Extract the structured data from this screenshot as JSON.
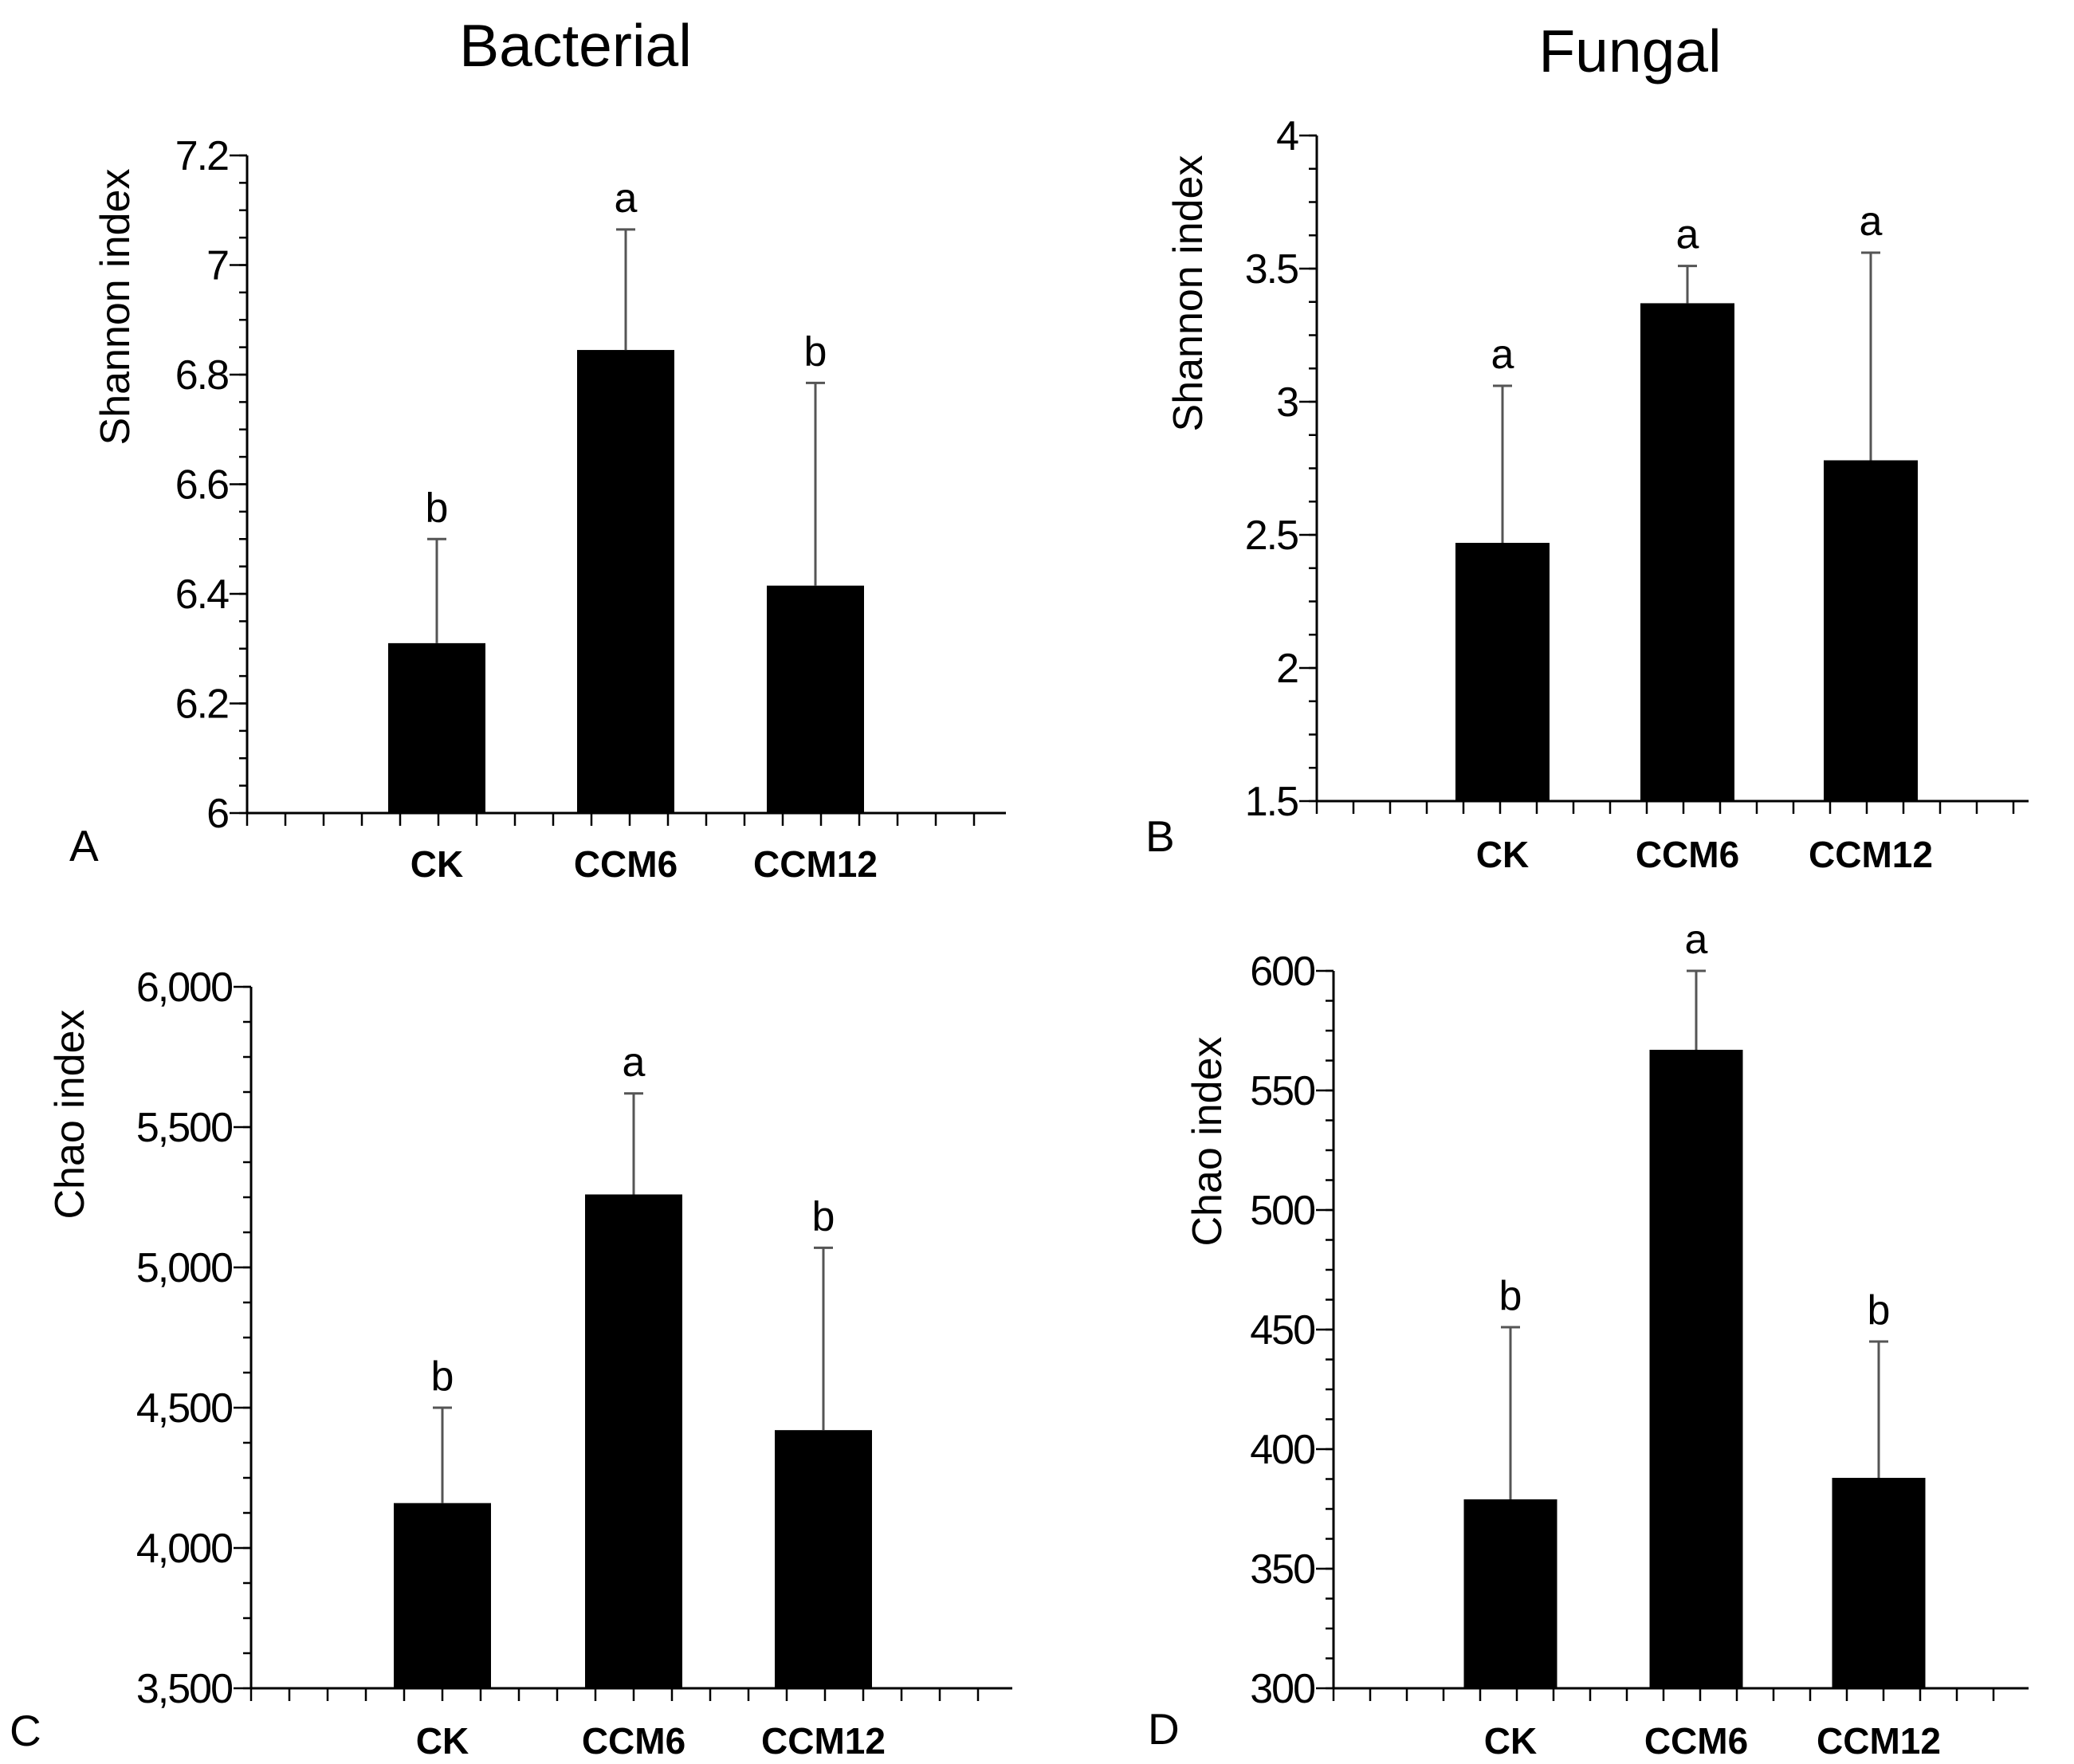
{
  "titles": {
    "left": "Bacterial",
    "right": "Fungal"
  },
  "chart_data": [
    {
      "type": "bar",
      "panel": "A",
      "title": "Bacterial",
      "ylabel": "Shannon index",
      "xlabel": "",
      "categories": [
        "CK",
        "CCM6",
        "CCM12"
      ],
      "values": [
        6.31,
        6.845,
        6.415
      ],
      "errors": [
        0.19,
        0.22,
        0.37
      ],
      "significance": [
        "b",
        "a",
        "b"
      ],
      "ylim": [
        6,
        7.2
      ],
      "yticks": [
        6,
        6.2,
        6.4,
        6.6,
        6.8,
        7,
        7.2
      ],
      "ytick_labels": [
        "6",
        "6.2",
        "6.4",
        "6.6",
        "6.8",
        "7",
        "7.2"
      ]
    },
    {
      "type": "bar",
      "panel": "B",
      "title": "Fungal",
      "ylabel": "Shannon index",
      "xlabel": "",
      "categories": [
        "CK",
        "CCM6",
        "CCM12"
      ],
      "values": [
        2.47,
        3.37,
        2.78
      ],
      "errors": [
        0.59,
        0.14,
        0.78
      ],
      "significance": [
        "a",
        "a",
        "a"
      ],
      "ylim": [
        1.5,
        4
      ],
      "yticks": [
        1.5,
        2,
        2.5,
        3,
        3.5,
        4
      ],
      "ytick_labels": [
        "1.5",
        "2",
        "2.5",
        "3",
        "3.5",
        "4"
      ]
    },
    {
      "type": "bar",
      "panel": "C",
      "title": "Bacterial",
      "ylabel": "Chao index",
      "xlabel": "",
      "categories": [
        "CK",
        "CCM6",
        "CCM12"
      ],
      "values": [
        4160,
        5260,
        4420
      ],
      "errors": [
        340,
        360,
        650
      ],
      "significance": [
        "b",
        "a",
        "b"
      ],
      "ylim": [
        3500,
        6000
      ],
      "yticks": [
        3500,
        4000,
        4500,
        5000,
        5500,
        6000
      ],
      "ytick_labels": [
        "3,500",
        "4,000",
        "4,500",
        "5,000",
        "5,500",
        "6,000"
      ]
    },
    {
      "type": "bar",
      "panel": "D",
      "title": "Fungal",
      "ylabel": "Chao index",
      "xlabel": "",
      "categories": [
        "CK",
        "CCM6",
        "CCM12"
      ],
      "values": [
        379,
        567,
        388
      ],
      "errors": [
        72,
        33,
        57
      ],
      "significance": [
        "b",
        "a",
        "b"
      ],
      "ylim": [
        300,
        600
      ],
      "yticks": [
        300,
        350,
        400,
        450,
        500,
        550,
        600
      ],
      "ytick_labels": [
        "300",
        "350",
        "400",
        "450",
        "500",
        "550",
        "600"
      ]
    }
  ]
}
